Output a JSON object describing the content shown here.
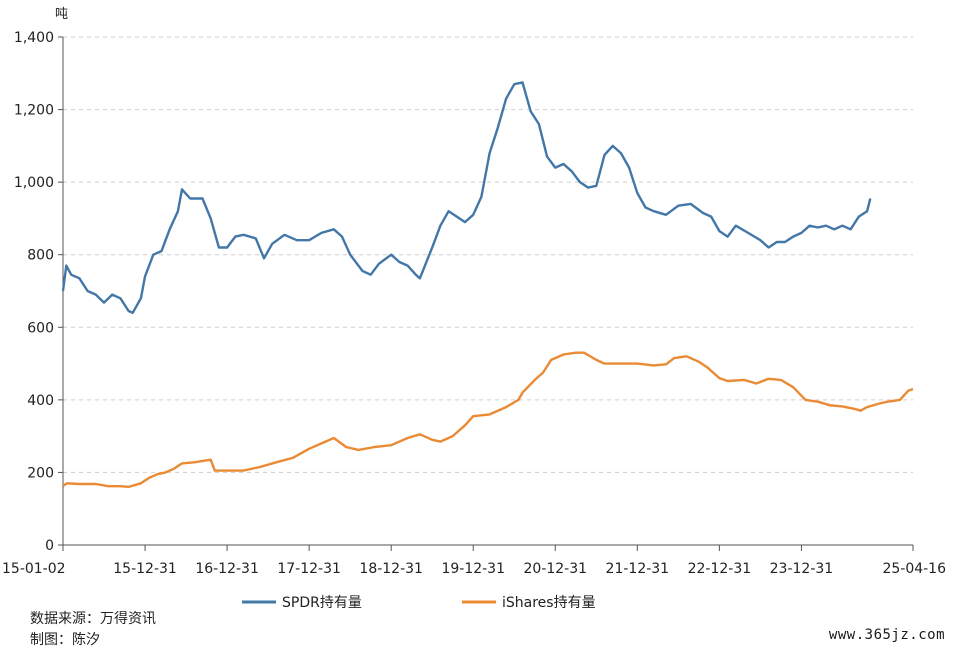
{
  "chart_data": {
    "type": "line",
    "ylabel": "吨",
    "ylim": [
      0,
      1400
    ],
    "yticks": [
      "0",
      "200",
      "400",
      "600",
      "800",
      "1,000",
      "1,200",
      "1,400"
    ],
    "xticks": [
      "15-01-02",
      "15-12-31",
      "16-12-31",
      "17-12-31",
      "18-12-31",
      "19-12-31",
      "20-12-31",
      "21-12-31",
      "22-12-31",
      "23-12-31",
      "25-04-16"
    ],
    "grid": "horizontal-dashed",
    "legend_position": "bottom",
    "colors": {
      "spdr": "#4277a8",
      "ishares": "#ea8a34"
    },
    "series": [
      {
        "name": "SPDR持有量",
        "points": [
          [
            0.0,
            700
          ],
          [
            0.04,
            770
          ],
          [
            0.1,
            745
          ],
          [
            0.2,
            735
          ],
          [
            0.3,
            700
          ],
          [
            0.4,
            690
          ],
          [
            0.5,
            668
          ],
          [
            0.6,
            690
          ],
          [
            0.7,
            680
          ],
          [
            0.8,
            645
          ],
          [
            0.85,
            640
          ],
          [
            0.95,
            680
          ],
          [
            1.0,
            740
          ],
          [
            1.1,
            800
          ],
          [
            1.2,
            810
          ],
          [
            1.3,
            870
          ],
          [
            1.4,
            920
          ],
          [
            1.45,
            980
          ],
          [
            1.55,
            955
          ],
          [
            1.7,
            955
          ],
          [
            1.8,
            900
          ],
          [
            1.9,
            820
          ],
          [
            2.0,
            820
          ],
          [
            2.1,
            850
          ],
          [
            2.2,
            855
          ],
          [
            2.35,
            845
          ],
          [
            2.45,
            790
          ],
          [
            2.55,
            830
          ],
          [
            2.7,
            855
          ],
          [
            2.85,
            840
          ],
          [
            3.0,
            840
          ],
          [
            3.15,
            860
          ],
          [
            3.3,
            870
          ],
          [
            3.4,
            850
          ],
          [
            3.5,
            800
          ],
          [
            3.65,
            755
          ],
          [
            3.75,
            745
          ],
          [
            3.85,
            775
          ],
          [
            4.0,
            800
          ],
          [
            4.1,
            780
          ],
          [
            4.2,
            770
          ],
          [
            4.3,
            745
          ],
          [
            4.35,
            735
          ],
          [
            4.5,
            820
          ],
          [
            4.6,
            880
          ],
          [
            4.7,
            920
          ],
          [
            4.8,
            905
          ],
          [
            4.9,
            890
          ],
          [
            5.0,
            910
          ],
          [
            5.1,
            960
          ],
          [
            5.2,
            1080
          ],
          [
            5.3,
            1150
          ],
          [
            5.4,
            1230
          ],
          [
            5.5,
            1270
          ],
          [
            5.6,
            1275
          ],
          [
            5.7,
            1195
          ],
          [
            5.8,
            1160
          ],
          [
            5.9,
            1070
          ],
          [
            6.0,
            1040
          ],
          [
            6.1,
            1050
          ],
          [
            6.2,
            1030
          ],
          [
            6.3,
            1000
          ],
          [
            6.4,
            985
          ],
          [
            6.5,
            990
          ],
          [
            6.6,
            1075
          ],
          [
            6.7,
            1100
          ],
          [
            6.8,
            1080
          ],
          [
            6.9,
            1040
          ],
          [
            7.0,
            970
          ],
          [
            7.1,
            930
          ],
          [
            7.2,
            920
          ],
          [
            7.35,
            910
          ],
          [
            7.5,
            935
          ],
          [
            7.65,
            940
          ],
          [
            7.8,
            915
          ],
          [
            7.9,
            905
          ],
          [
            8.0,
            865
          ],
          [
            8.1,
            850
          ],
          [
            8.2,
            880
          ],
          [
            8.35,
            860
          ],
          [
            8.5,
            840
          ],
          [
            8.6,
            820
          ],
          [
            8.7,
            835
          ],
          [
            8.8,
            835
          ],
          [
            8.9,
            850
          ],
          [
            9.0,
            860
          ],
          [
            9.1,
            880
          ],
          [
            9.2,
            875
          ],
          [
            9.3,
            880
          ],
          [
            9.4,
            870
          ],
          [
            9.5,
            880
          ],
          [
            9.6,
            870
          ],
          [
            9.7,
            905
          ],
          [
            9.8,
            920
          ],
          [
            9.84,
            955
          ]
        ]
      },
      {
        "name": "iShares持有量",
        "points": [
          [
            0.0,
            163
          ],
          [
            0.05,
            170
          ],
          [
            0.2,
            168
          ],
          [
            0.4,
            168
          ],
          [
            0.55,
            162
          ],
          [
            0.7,
            162
          ],
          [
            0.8,
            160
          ],
          [
            0.95,
            170
          ],
          [
            1.05,
            185
          ],
          [
            1.15,
            195
          ],
          [
            1.25,
            200
          ],
          [
            1.35,
            210
          ],
          [
            1.45,
            225
          ],
          [
            1.6,
            228
          ],
          [
            1.8,
            235
          ],
          [
            1.85,
            205
          ],
          [
            2.0,
            205
          ],
          [
            2.2,
            205
          ],
          [
            2.4,
            215
          ],
          [
            2.6,
            228
          ],
          [
            2.8,
            240
          ],
          [
            3.0,
            265
          ],
          [
            3.2,
            285
          ],
          [
            3.3,
            295
          ],
          [
            3.45,
            270
          ],
          [
            3.6,
            262
          ],
          [
            3.8,
            270
          ],
          [
            4.0,
            275
          ],
          [
            4.2,
            295
          ],
          [
            4.35,
            305
          ],
          [
            4.5,
            290
          ],
          [
            4.6,
            285
          ],
          [
            4.75,
            300
          ],
          [
            4.9,
            330
          ],
          [
            5.0,
            355
          ],
          [
            5.2,
            360
          ],
          [
            5.4,
            380
          ],
          [
            5.55,
            400
          ],
          [
            5.6,
            420
          ],
          [
            5.75,
            455
          ],
          [
            5.85,
            475
          ],
          [
            5.95,
            510
          ],
          [
            6.1,
            525
          ],
          [
            6.25,
            530
          ],
          [
            6.35,
            530
          ],
          [
            6.5,
            510
          ],
          [
            6.6,
            500
          ],
          [
            6.8,
            500
          ],
          [
            7.0,
            500
          ],
          [
            7.2,
            495
          ],
          [
            7.35,
            498
          ],
          [
            7.45,
            515
          ],
          [
            7.6,
            520
          ],
          [
            7.75,
            505
          ],
          [
            7.85,
            490
          ],
          [
            8.0,
            460
          ],
          [
            8.1,
            452
          ],
          [
            8.3,
            455
          ],
          [
            8.45,
            445
          ],
          [
            8.6,
            458
          ],
          [
            8.75,
            455
          ],
          [
            8.9,
            435
          ],
          [
            9.05,
            400
          ],
          [
            9.2,
            395
          ],
          [
            9.35,
            385
          ],
          [
            9.5,
            382
          ],
          [
            9.65,
            375
          ],
          [
            9.72,
            370
          ],
          [
            9.8,
            380
          ],
          [
            9.95,
            390
          ],
          [
            10.05,
            395
          ],
          [
            10.2,
            400
          ],
          [
            10.3,
            425
          ],
          [
            10.36,
            430
          ]
        ]
      }
    ]
  },
  "footer": {
    "source": "数据来源：万得资讯",
    "author": "制图：陈汐"
  },
  "watermark": "www.365jz.com"
}
